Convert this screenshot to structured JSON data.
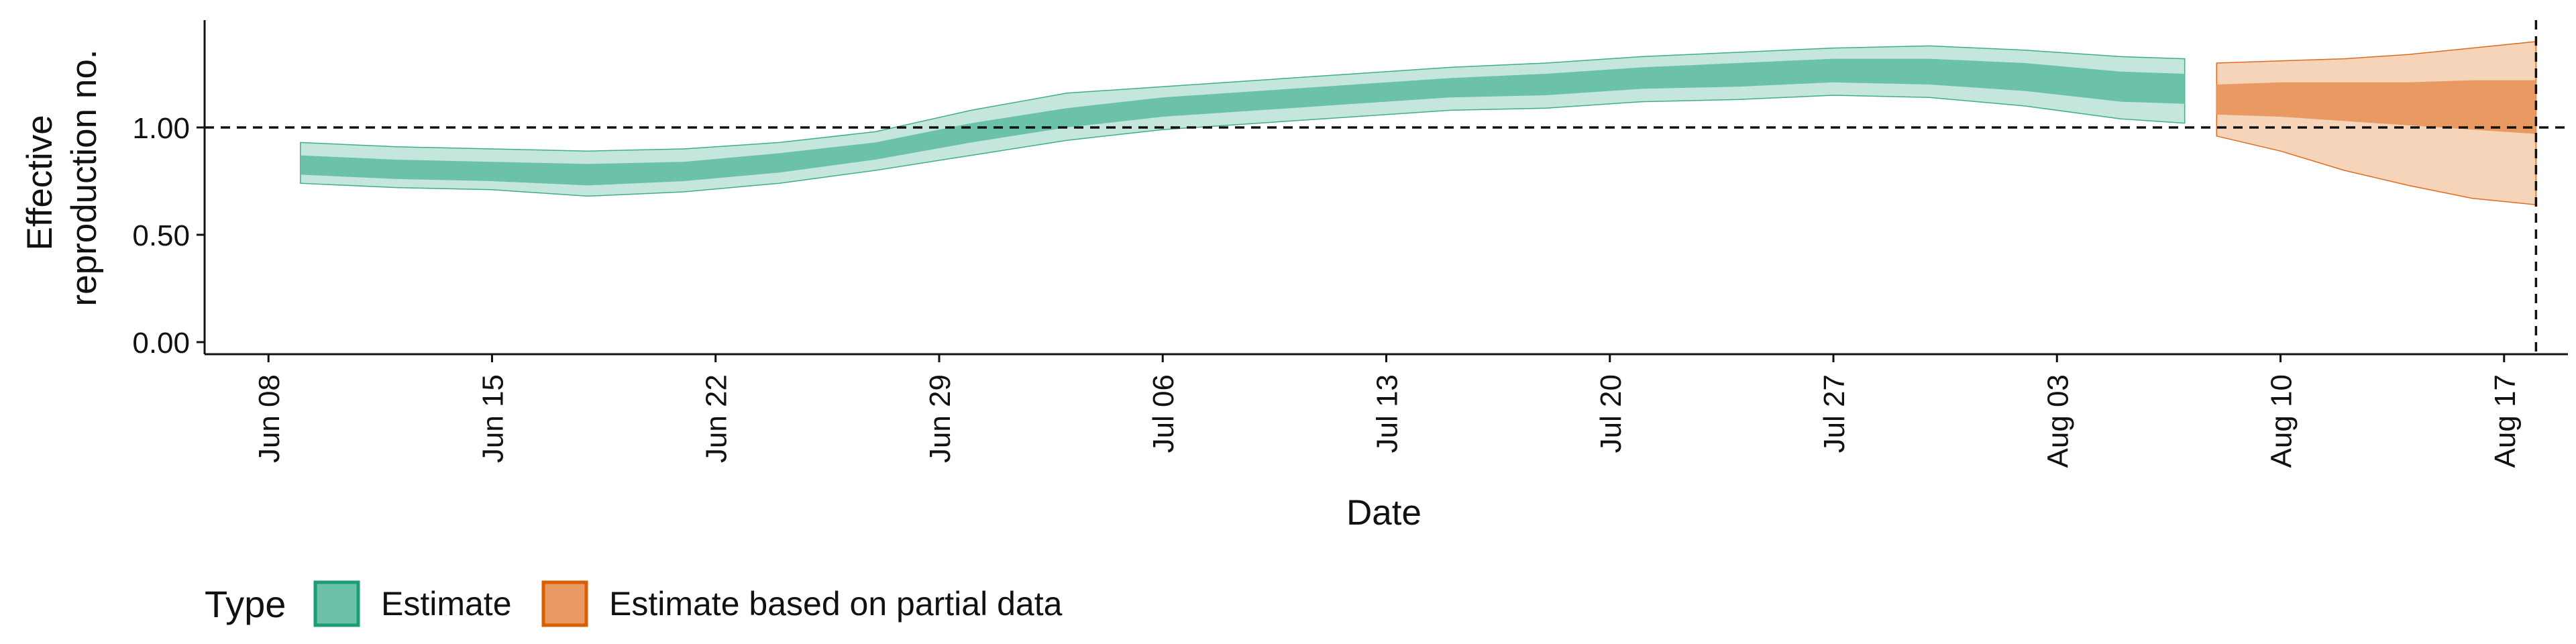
{
  "chart_data": {
    "type": "area",
    "xlabel": "Date",
    "ylabel_lines": [
      "Effective",
      "reproduction no."
    ],
    "ylim": [
      0,
      1.5
    ],
    "yticks": [
      0.0,
      0.5,
      1.0
    ],
    "ytick_labels": [
      "0.00",
      "0.50",
      "1.00"
    ],
    "xlim": [
      "2020-06-06",
      "2020-08-19"
    ],
    "xticks": [
      "2020-06-08",
      "2020-06-15",
      "2020-06-22",
      "2020-06-29",
      "2020-07-06",
      "2020-07-13",
      "2020-07-20",
      "2020-07-27",
      "2020-08-03",
      "2020-08-10",
      "2020-08-17"
    ],
    "xtick_labels": [
      "Jun 08",
      "Jun 15",
      "Jun 22",
      "Jun 29",
      "Jul 06",
      "Jul 13",
      "Jul 20",
      "Jul 27",
      "Aug 03",
      "Aug 10",
      "Aug 17"
    ],
    "reference_line_y": 1.0,
    "reference_line_x": "2020-08-18",
    "grid": false,
    "legend": {
      "title": "Type",
      "position": "bottom-left",
      "entries": [
        "Estimate",
        "Estimate based on partial data"
      ]
    },
    "series": [
      {
        "name": "Estimate",
        "color_outer": "#c4e6dc",
        "color_inner": "#6cc2a8",
        "edge_color": "#3fae8a",
        "points": [
          {
            "x": "2020-06-09",
            "lower90": 0.74,
            "upper90": 0.93,
            "lower50": 0.78,
            "upper50": 0.87
          },
          {
            "x": "2020-06-12",
            "lower90": 0.72,
            "upper90": 0.91,
            "lower50": 0.76,
            "upper50": 0.85
          },
          {
            "x": "2020-06-15",
            "lower90": 0.71,
            "upper90": 0.9,
            "lower50": 0.75,
            "upper50": 0.84
          },
          {
            "x": "2020-06-18",
            "lower90": 0.68,
            "upper90": 0.89,
            "lower50": 0.73,
            "upper50": 0.83
          },
          {
            "x": "2020-06-21",
            "lower90": 0.7,
            "upper90": 0.9,
            "lower50": 0.75,
            "upper50": 0.84
          },
          {
            "x": "2020-06-24",
            "lower90": 0.74,
            "upper90": 0.93,
            "lower50": 0.79,
            "upper50": 0.88
          },
          {
            "x": "2020-06-27",
            "lower90": 0.8,
            "upper90": 0.98,
            "lower50": 0.85,
            "upper50": 0.93
          },
          {
            "x": "2020-06-30",
            "lower90": 0.87,
            "upper90": 1.08,
            "lower50": 0.93,
            "upper50": 1.02
          },
          {
            "x": "2020-07-03",
            "lower90": 0.94,
            "upper90": 1.16,
            "lower50": 1.0,
            "upper50": 1.09
          },
          {
            "x": "2020-07-06",
            "lower90": 0.99,
            "upper90": 1.19,
            "lower50": 1.05,
            "upper50": 1.14
          },
          {
            "x": "2020-07-09",
            "lower90": 1.02,
            "upper90": 1.22,
            "lower50": 1.08,
            "upper50": 1.17
          },
          {
            "x": "2020-07-12",
            "lower90": 1.05,
            "upper90": 1.25,
            "lower50": 1.11,
            "upper50": 1.2
          },
          {
            "x": "2020-07-15",
            "lower90": 1.08,
            "upper90": 1.28,
            "lower50": 1.14,
            "upper50": 1.23
          },
          {
            "x": "2020-07-18",
            "lower90": 1.09,
            "upper90": 1.3,
            "lower50": 1.15,
            "upper50": 1.25
          },
          {
            "x": "2020-07-21",
            "lower90": 1.12,
            "upper90": 1.33,
            "lower50": 1.18,
            "upper50": 1.28
          },
          {
            "x": "2020-07-24",
            "lower90": 1.13,
            "upper90": 1.35,
            "lower50": 1.19,
            "upper50": 1.3
          },
          {
            "x": "2020-07-27",
            "lower90": 1.15,
            "upper90": 1.37,
            "lower50": 1.21,
            "upper50": 1.32
          },
          {
            "x": "2020-07-30",
            "lower90": 1.14,
            "upper90": 1.38,
            "lower50": 1.2,
            "upper50": 1.32
          },
          {
            "x": "2020-08-02",
            "lower90": 1.1,
            "upper90": 1.36,
            "lower50": 1.17,
            "upper50": 1.3
          },
          {
            "x": "2020-08-05",
            "lower90": 1.04,
            "upper90": 1.33,
            "lower50": 1.12,
            "upper50": 1.26
          },
          {
            "x": "2020-08-07",
            "lower90": 1.02,
            "upper90": 1.32,
            "lower50": 1.11,
            "upper50": 1.25
          }
        ]
      },
      {
        "name": "Estimate based on partial data",
        "color_outer": "#f6d4ba",
        "color_inner": "#e89a62",
        "edge_color": "#e06a1b",
        "points": [
          {
            "x": "2020-08-08",
            "lower90": 0.96,
            "upper90": 1.3,
            "lower50": 1.06,
            "upper50": 1.2
          },
          {
            "x": "2020-08-10",
            "lower90": 0.89,
            "upper90": 1.31,
            "lower50": 1.05,
            "upper50": 1.21
          },
          {
            "x": "2020-08-12",
            "lower90": 0.8,
            "upper90": 1.32,
            "lower50": 1.03,
            "upper50": 1.21
          },
          {
            "x": "2020-08-14",
            "lower90": 0.73,
            "upper90": 1.34,
            "lower50": 1.01,
            "upper50": 1.21
          },
          {
            "x": "2020-08-16",
            "lower90": 0.67,
            "upper90": 1.37,
            "lower50": 0.99,
            "upper50": 1.22
          },
          {
            "x": "2020-08-18",
            "lower90": 0.64,
            "upper90": 1.4,
            "lower50": 0.97,
            "upper50": 1.22
          }
        ]
      }
    ]
  }
}
